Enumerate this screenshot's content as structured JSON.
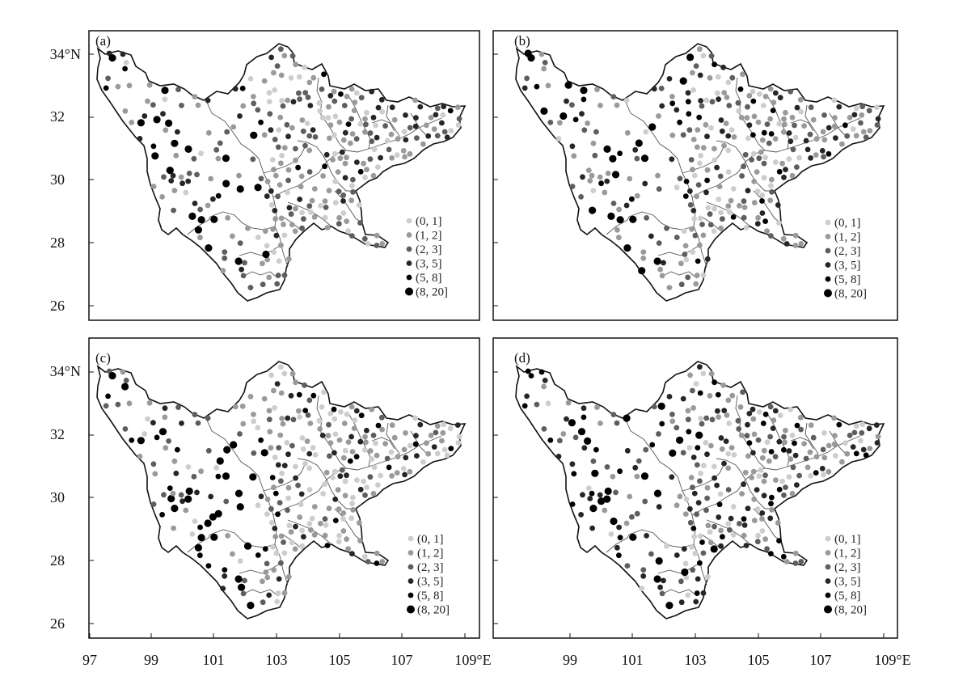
{
  "figure": {
    "lon_ticks": [
      "97",
      "99",
      "101",
      "103",
      "105",
      "107",
      "109°E"
    ],
    "lat_ticks": [
      "26",
      "28",
      "30",
      "32",
      "34°N"
    ],
    "legend": [
      {
        "label": "(0, 1]",
        "color": "#cdcdcd",
        "size": "small"
      },
      {
        "label": "(1, 2]",
        "color": "#9a9a9a",
        "size": "small"
      },
      {
        "label": "(2, 3]",
        "color": "#5e5e5e",
        "size": "small"
      },
      {
        "label": "(3, 5]",
        "color": "#262626",
        "size": "small"
      },
      {
        "label": "(5, 8]",
        "color": "#000000",
        "size": "small"
      },
      {
        "label": "(8, 20]",
        "color": "#000000",
        "size": "large"
      }
    ],
    "panels": [
      {
        "label": "(a)",
        "category_mix": [
          0.2,
          0.33,
          0.22,
          0.17,
          0.06,
          0.02
        ]
      },
      {
        "label": "(b)",
        "category_mix": [
          0.22,
          0.3,
          0.22,
          0.18,
          0.06,
          0.02
        ]
      },
      {
        "label": "(c)",
        "category_mix": [
          0.3,
          0.28,
          0.2,
          0.14,
          0.06,
          0.02
        ]
      },
      {
        "label": "(d)",
        "category_mix": [
          0.18,
          0.24,
          0.2,
          0.22,
          0.12,
          0.04
        ]
      }
    ]
  }
}
